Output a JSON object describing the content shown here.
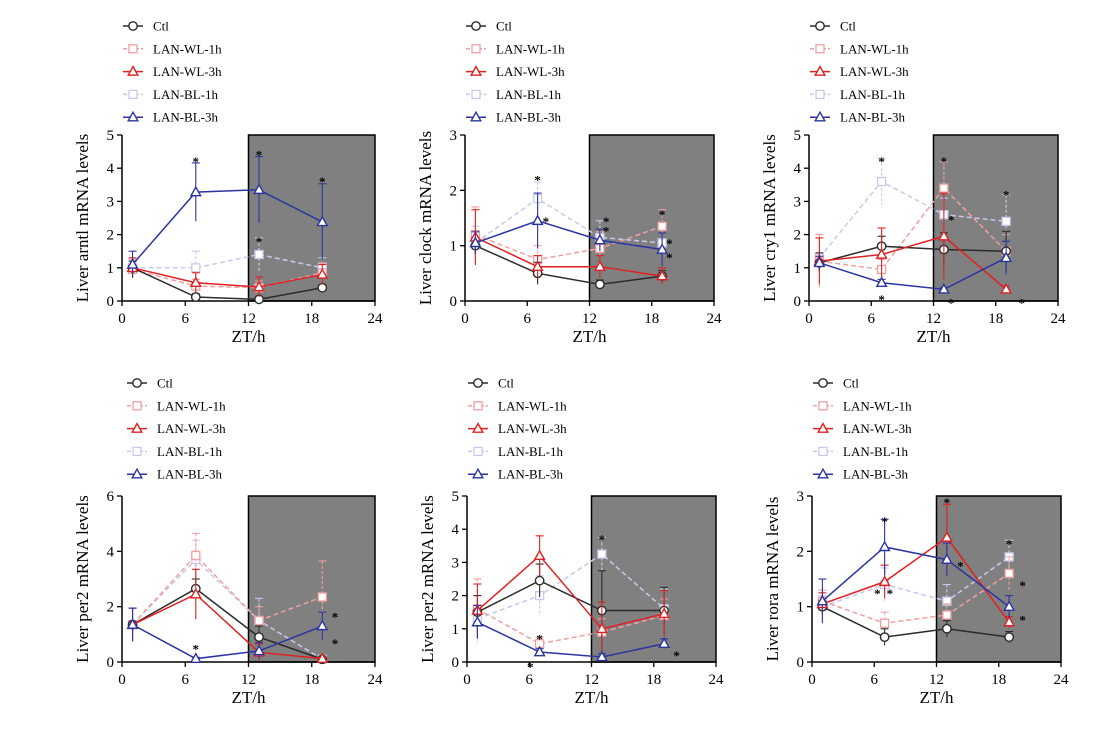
{
  "series_styles": {
    "Ctl": {
      "color": "#2b2b2b",
      "marker": "circle",
      "dash": false
    },
    "LAN-WL-1h": {
      "color": "#f0a0a0",
      "marker": "square",
      "dash": true
    },
    "LAN-WL-3h": {
      "color": "#e02020",
      "marker": "triangle",
      "dash": false
    },
    "LAN-BL-1h": {
      "color": "#c9c9ec",
      "marker": "square",
      "dash": true
    },
    "LAN-BL-3h": {
      "color": "#2a35a0",
      "marker": "triangle",
      "dash": false
    }
  },
  "dark_phase_color": "#808080",
  "chart_data": [
    {
      "type": "line",
      "xlabel": "ZT/h",
      "ylabel": "Liver arntl mRNA levels",
      "xlim": [
        0,
        24
      ],
      "ylim": [
        0,
        5
      ],
      "xticks": [
        0,
        6,
        12,
        18,
        24
      ],
      "yticks": [
        0,
        1,
        2,
        3,
        4,
        5
      ],
      "shaded_x": [
        12,
        24
      ],
      "x": [
        1,
        7,
        13,
        19
      ],
      "legend": [
        "Ctl",
        "LAN-WL-1h",
        "LAN-WL-3h",
        "LAN-BL-1h",
        "LAN-BL-3h"
      ],
      "series": [
        {
          "name": "Ctl",
          "values": [
            1.0,
            0.12,
            0.05,
            0.4
          ],
          "errors": [
            0.2,
            0.1,
            0.05,
            0.08
          ]
        },
        {
          "name": "LAN-WL-1h",
          "values": [
            0.95,
            0.45,
            0.4,
            0.85
          ],
          "errors": [
            0.3,
            0.2,
            0.2,
            0.3
          ]
        },
        {
          "name": "LAN-WL-3h",
          "values": [
            1.0,
            0.55,
            0.42,
            0.8
          ],
          "errors": [
            0.3,
            0.3,
            0.3,
            0.3
          ]
        },
        {
          "name": "LAN-BL-1h",
          "values": [
            1.0,
            1.0,
            1.4,
            1.0
          ],
          "errors": [
            0.3,
            0.5,
            0.5,
            0.3
          ]
        },
        {
          "name": "LAN-BL-3h",
          "values": [
            1.1,
            3.28,
            3.35,
            2.38
          ],
          "errors": [
            0.4,
            0.88,
            1.0,
            1.15
          ]
        }
      ],
      "annotations": [
        {
          "text": "*",
          "x": 7,
          "y": 4.3
        },
        {
          "text": "*",
          "x": 13,
          "y": 4.5
        },
        {
          "text": "*",
          "x": 13,
          "y": 1.9
        },
        {
          "text": "*",
          "x": 19,
          "y": 3.7
        }
      ]
    },
    {
      "type": "line",
      "xlabel": "ZT/h",
      "ylabel": "Liver clock mRNA levels",
      "xlim": [
        0,
        24
      ],
      "ylim": [
        0,
        3
      ],
      "xticks": [
        0,
        6,
        12,
        18,
        24
      ],
      "yticks": [
        0,
        1,
        2,
        3
      ],
      "shaded_x": [
        12,
        24
      ],
      "x": [
        1,
        7,
        13,
        19
      ],
      "legend": [
        "Ctl",
        "LAN-WL-1h",
        "LAN-WL-3h",
        "LAN-BL-1h",
        "LAN-BL-3h"
      ],
      "series": [
        {
          "name": "Ctl",
          "values": [
            1.0,
            0.5,
            0.3,
            0.45
          ],
          "errors": [
            0.15,
            0.2,
            0.08,
            0.1
          ]
        },
        {
          "name": "LAN-WL-1h",
          "values": [
            1.2,
            0.75,
            0.95,
            1.35
          ],
          "errors": [
            0.5,
            0.25,
            0.3,
            0.3
          ]
        },
        {
          "name": "LAN-WL-3h",
          "values": [
            1.15,
            0.62,
            0.62,
            0.45
          ],
          "errors": [
            0.5,
            0.2,
            0.2,
            0.15
          ]
        },
        {
          "name": "LAN-BL-1h",
          "values": [
            1.05,
            1.85,
            1.15,
            1.05
          ],
          "errors": [
            0.3,
            0.3,
            0.3,
            0.3
          ]
        },
        {
          "name": "LAN-BL-3h",
          "values": [
            1.05,
            1.45,
            1.1,
            0.93
          ],
          "errors": [
            0.2,
            0.5,
            0.2,
            0.3
          ]
        }
      ],
      "annotations": [
        {
          "text": "*",
          "x": 7,
          "y": 2.25
        },
        {
          "text": "*",
          "x": 7.8,
          "y": 1.5
        },
        {
          "text": "*",
          "x": 13.6,
          "y": 1.5
        },
        {
          "text": "*",
          "x": 13.6,
          "y": 1.33
        },
        {
          "text": "*",
          "x": 19,
          "y": 1.63
        },
        {
          "text": "*",
          "x": 19.7,
          "y": 1.1
        },
        {
          "text": "*",
          "x": 19.7,
          "y": 0.85
        }
      ]
    },
    {
      "type": "line",
      "xlabel": "ZT/h",
      "ylabel": "Liver cry1 mRNA levels",
      "xlim": [
        0,
        24
      ],
      "ylim": [
        0,
        5
      ],
      "xticks": [
        0,
        6,
        12,
        18,
        24
      ],
      "yticks": [
        0,
        1,
        2,
        3,
        4,
        5
      ],
      "shaded_x": [
        12,
        24
      ],
      "x": [
        1,
        7,
        13,
        19
      ],
      "legend": [
        "Ctl",
        "LAN-WL-1h",
        "LAN-WL-3h",
        "LAN-BL-1h",
        "LAN-BL-3h"
      ],
      "series": [
        {
          "name": "Ctl",
          "values": [
            1.15,
            1.65,
            1.55,
            1.5
          ],
          "errors": [
            0.3,
            0.3,
            0.5,
            0.6
          ]
        },
        {
          "name": "LAN-WL-1h",
          "values": [
            1.2,
            0.95,
            3.4,
            1.5
          ],
          "errors": [
            0.8,
            0.3,
            0.8,
            0.5
          ]
        },
        {
          "name": "LAN-WL-3h",
          "values": [
            1.2,
            1.4,
            1.95,
            0.35
          ],
          "errors": [
            0.7,
            0.8,
            1.3,
            0.1
          ]
        },
        {
          "name": "LAN-BL-1h",
          "values": [
            1.3,
            3.6,
            2.6,
            2.4
          ],
          "errors": [
            0.7,
            0.7,
            0.5,
            0.8
          ]
        },
        {
          "name": "LAN-BL-3h",
          "values": [
            1.15,
            0.55,
            0.35,
            1.3
          ],
          "errors": [
            0.2,
            0.1,
            0.05,
            0.5
          ]
        }
      ],
      "annotations": [
        {
          "text": "*",
          "x": 7,
          "y": 4.3
        },
        {
          "text": "*",
          "x": 7,
          "y": 0.15
        },
        {
          "text": "*",
          "x": 13,
          "y": 4.3
        },
        {
          "text": "*",
          "x": 13.7,
          "y": 2.55
        },
        {
          "text": "*",
          "x": 13.7,
          "y": 0.05
        },
        {
          "text": "*",
          "x": 19,
          "y": 3.3
        },
        {
          "text": "*",
          "x": 20.5,
          "y": 0.05
        }
      ]
    },
    {
      "type": "line",
      "xlabel": "ZT/h",
      "ylabel": "Liver per2 mRNA levels",
      "xlim": [
        0,
        24
      ],
      "ylim": [
        0,
        6
      ],
      "xticks": [
        0,
        6,
        12,
        18,
        24
      ],
      "yticks": [
        0,
        2,
        4,
        6
      ],
      "shaded_x": [
        12,
        24
      ],
      "x": [
        1,
        7,
        13,
        19
      ],
      "legend": [
        "Ctl",
        "LAN-WL-1h",
        "LAN-WL-3h",
        "LAN-BL-1h",
        "LAN-BL-3h"
      ],
      "series": [
        {
          "name": "Ctl",
          "values": [
            1.35,
            2.65,
            0.9,
            0.1
          ],
          "errors": [
            0.6,
            0.35,
            0.4,
            0.05
          ]
        },
        {
          "name": "LAN-WL-1h",
          "values": [
            1.35,
            3.85,
            1.5,
            2.35
          ],
          "errors": [
            0.6,
            0.8,
            0.5,
            1.3
          ]
        },
        {
          "name": "LAN-WL-3h",
          "values": [
            1.35,
            2.45,
            0.35,
            0.12
          ],
          "errors": [
            0.6,
            0.9,
            0.3,
            0.05
          ]
        },
        {
          "name": "LAN-BL-1h",
          "values": [
            1.35,
            3.7,
            1.5,
            0.1
          ],
          "errors": [
            0.6,
            0.7,
            0.8,
            0.05
          ]
        },
        {
          "name": "LAN-BL-3h",
          "values": [
            1.35,
            0.12,
            0.4,
            1.3
          ],
          "errors": [
            0.6,
            0.05,
            0.3,
            0.5
          ]
        }
      ],
      "annotations": [
        {
          "text": "*",
          "x": 7,
          "y": 0.6
        },
        {
          "text": "*",
          "x": 20.2,
          "y": 1.75
        },
        {
          "text": "*",
          "x": 20.2,
          "y": 0.8
        }
      ]
    },
    {
      "type": "line",
      "xlabel": "ZT/h",
      "ylabel": "Liver per2 mRNA levels",
      "xlim": [
        0,
        24
      ],
      "ylim": [
        0,
        5
      ],
      "xticks": [
        0,
        6,
        12,
        18,
        24
      ],
      "yticks": [
        0,
        1,
        2,
        3,
        4,
        5
      ],
      "shaded_x": [
        12,
        24
      ],
      "x": [
        1,
        7,
        13,
        19
      ],
      "legend": [
        "Ctl",
        "LAN-WL-1h",
        "LAN-WL-3h",
        "LAN-BL-1h",
        "LAN-BL-3h"
      ],
      "series": [
        {
          "name": "Ctl",
          "values": [
            1.5,
            2.45,
            1.55,
            1.55
          ],
          "errors": [
            0.5,
            0.5,
            1.2,
            0.7
          ]
        },
        {
          "name": "LAN-WL-1h",
          "values": [
            1.6,
            0.55,
            0.9,
            1.4
          ],
          "errors": [
            0.9,
            0.2,
            0.4,
            0.5
          ]
        },
        {
          "name": "LAN-WL-3h",
          "values": [
            1.55,
            3.2,
            1.0,
            1.45
          ],
          "errors": [
            0.8,
            0.6,
            0.8,
            0.7
          ]
        },
        {
          "name": "LAN-BL-1h",
          "values": [
            1.3,
            2.0,
            3.25,
            1.6
          ],
          "errors": [
            0.7,
            0.6,
            0.5,
            0.6
          ]
        },
        {
          "name": "LAN-BL-3h",
          "values": [
            1.2,
            0.3,
            0.15,
            0.55
          ],
          "errors": [
            0.5,
            0.1,
            0.1,
            0.15
          ]
        }
      ],
      "annotations": [
        {
          "text": "*",
          "x": 7,
          "y": 0.8
        },
        {
          "text": "*",
          "x": 6.1,
          "y": -0.05
        },
        {
          "text": "*",
          "x": 13,
          "y": 3.8
        },
        {
          "text": "*",
          "x": 20.2,
          "y": 0.3
        }
      ]
    },
    {
      "type": "line",
      "xlabel": "ZT/h",
      "ylabel": "Liver rora mRNA levels",
      "xlim": [
        0,
        24
      ],
      "ylim": [
        0,
        3
      ],
      "xticks": [
        0,
        6,
        12,
        18,
        24
      ],
      "yticks": [
        0,
        1,
        2,
        3
      ],
      "shaded_x": [
        12,
        24
      ],
      "x": [
        1,
        7,
        13,
        19
      ],
      "legend": [
        "Ctl",
        "LAN-WL-1h",
        "LAN-WL-3h",
        "LAN-BL-1h",
        "LAN-BL-3h"
      ],
      "series": [
        {
          "name": "Ctl",
          "values": [
            1.0,
            0.45,
            0.6,
            0.45
          ],
          "errors": [
            0.1,
            0.15,
            0.15,
            0.1
          ]
        },
        {
          "name": "LAN-WL-1h",
          "values": [
            1.1,
            0.7,
            0.85,
            1.6
          ],
          "errors": [
            0.2,
            0.2,
            0.2,
            0.3
          ]
        },
        {
          "name": "LAN-WL-3h",
          "values": [
            1.05,
            1.45,
            2.25,
            0.72
          ],
          "errors": [
            0.2,
            0.3,
            0.6,
            0.1
          ]
        },
        {
          "name": "LAN-BL-1h",
          "values": [
            1.0,
            1.4,
            1.1,
            1.9
          ],
          "errors": [
            0.2,
            0.3,
            0.3,
            0.3
          ]
        },
        {
          "name": "LAN-BL-3h",
          "values": [
            1.1,
            2.08,
            1.85,
            1.0
          ],
          "errors": [
            0.4,
            0.5,
            0.3,
            0.2
          ]
        }
      ],
      "annotations": [
        {
          "text": "*",
          "x": 7,
          "y": 2.6
        },
        {
          "text": "*",
          "x": 6.3,
          "y": 1.3
        },
        {
          "text": "*",
          "x": 7.5,
          "y": 1.3
        },
        {
          "text": "*",
          "x": 13,
          "y": 2.95
        },
        {
          "text": "*",
          "x": 14.3,
          "y": 1.8
        },
        {
          "text": "*",
          "x": 19,
          "y": 2.2
        },
        {
          "text": "*",
          "x": 20.3,
          "y": 1.45
        },
        {
          "text": "*",
          "x": 20.3,
          "y": 0.82
        }
      ]
    }
  ]
}
